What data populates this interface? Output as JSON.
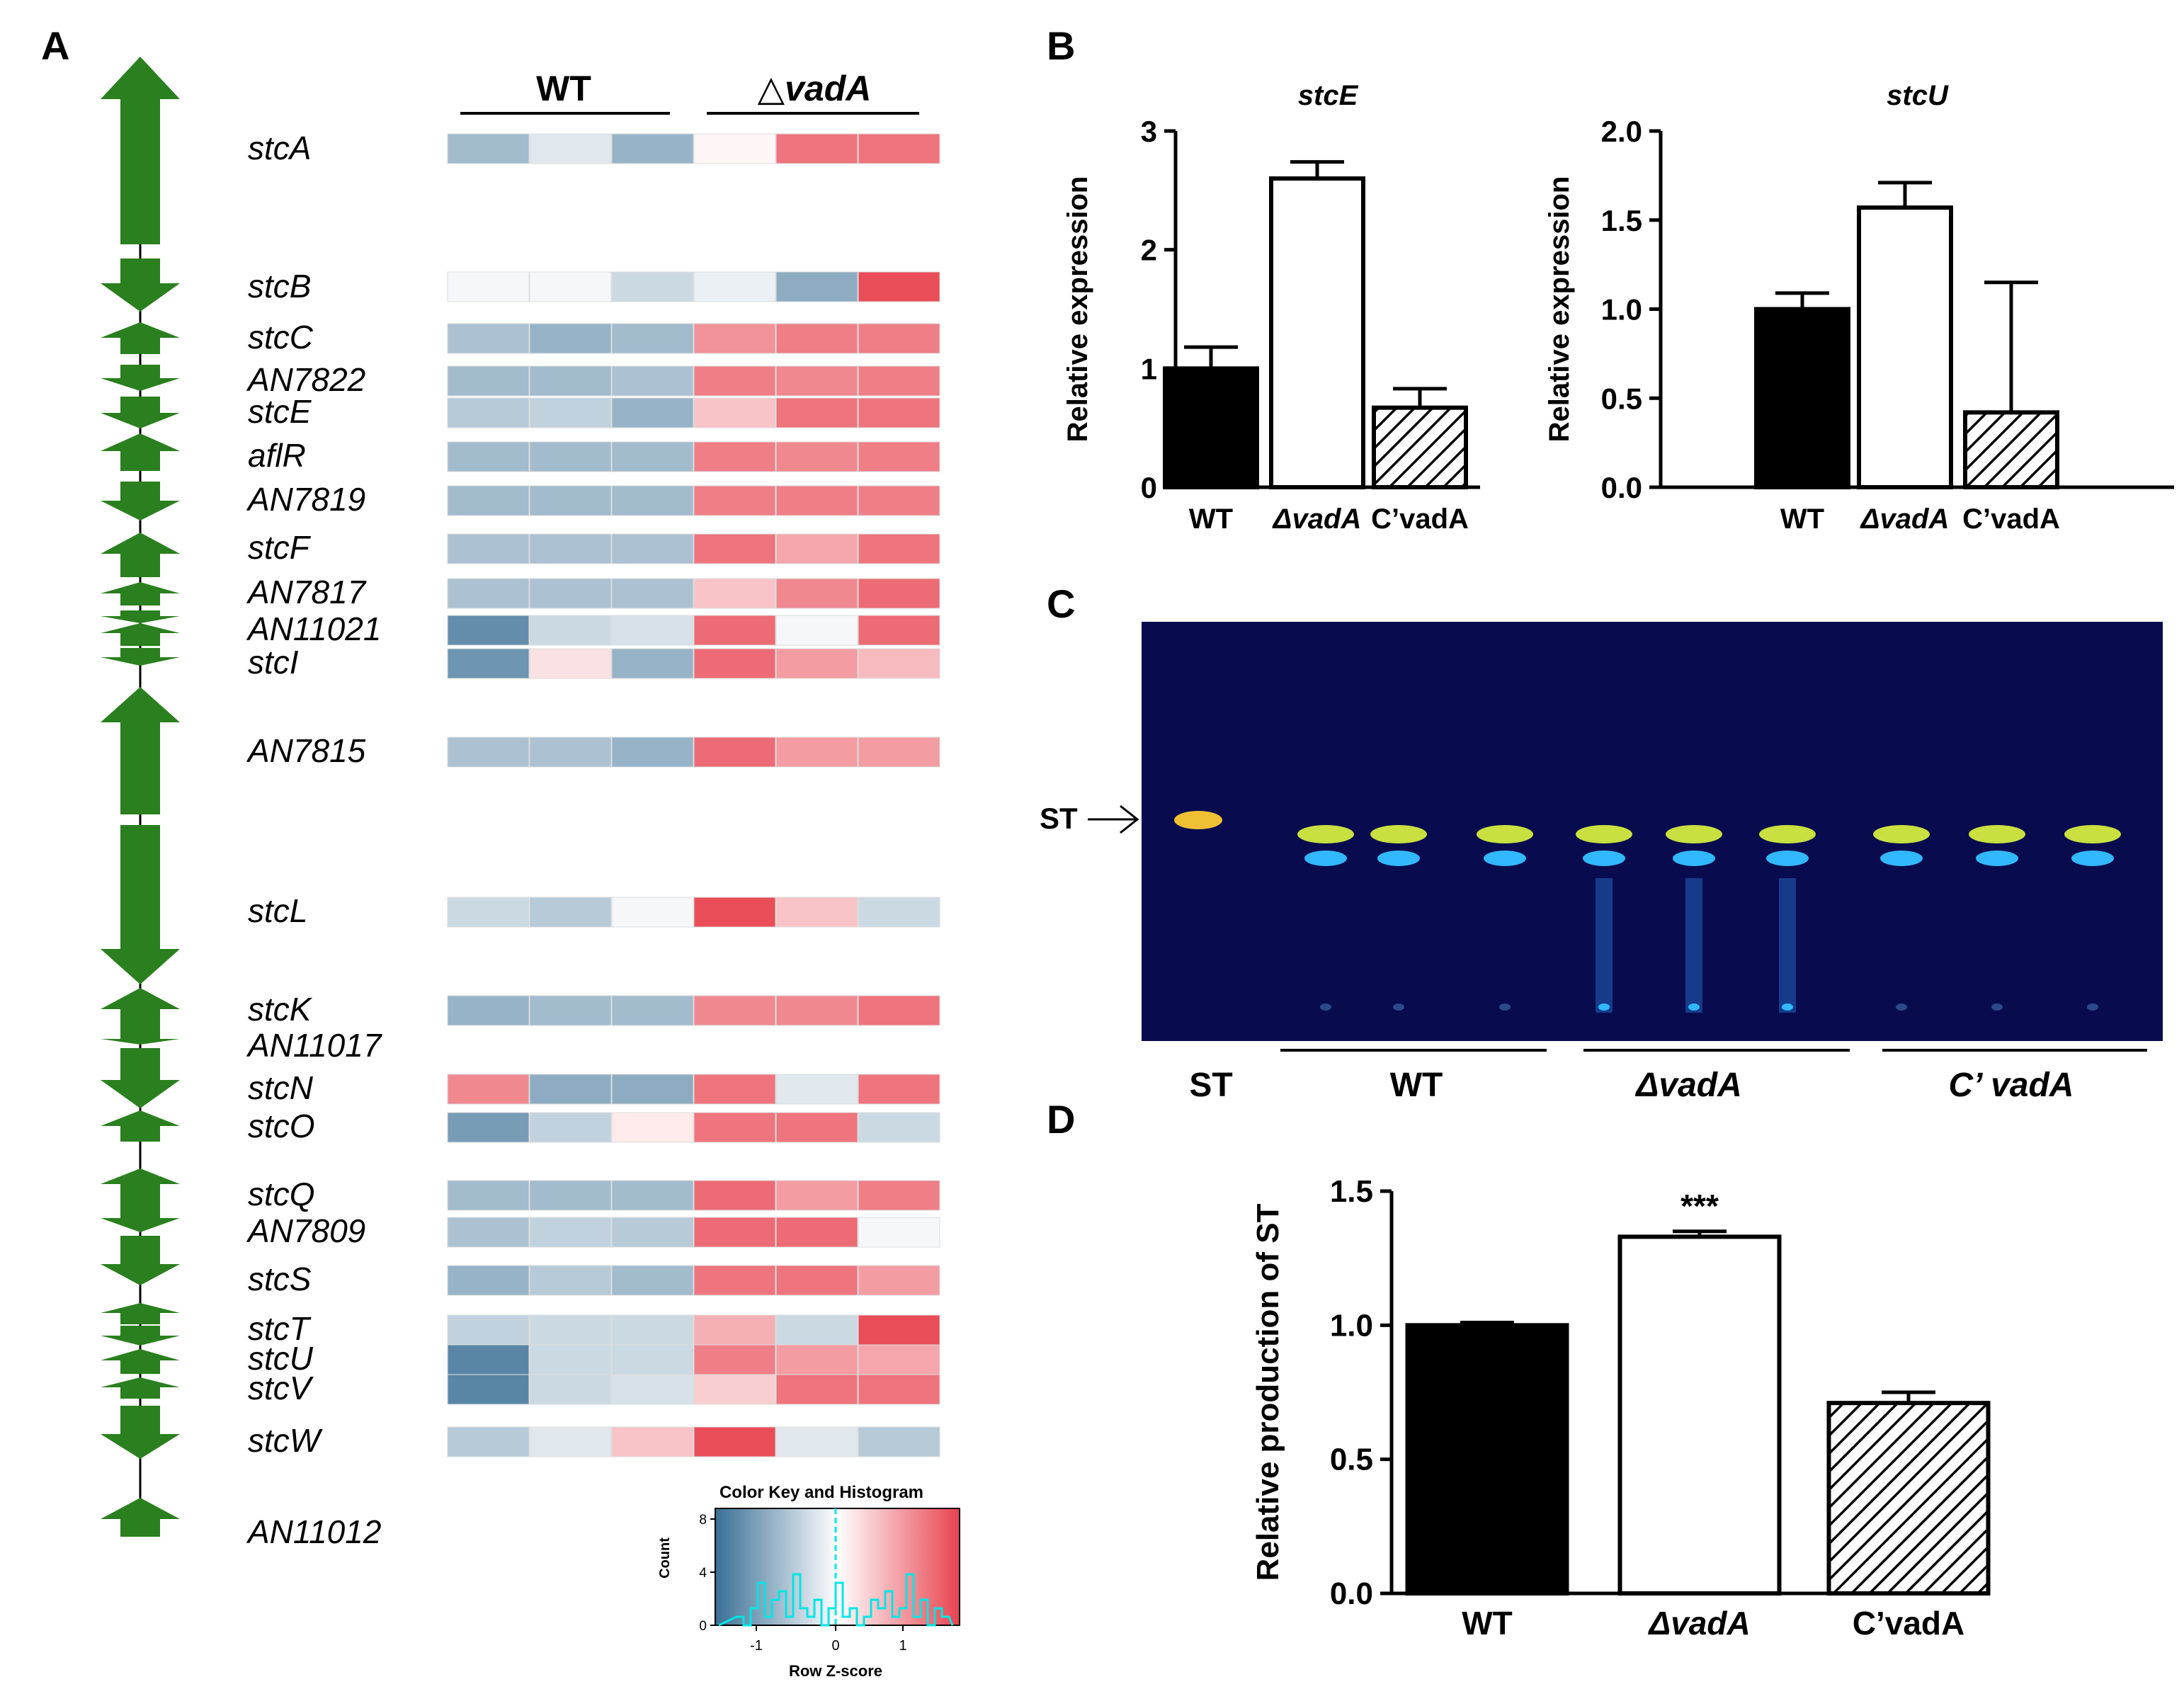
{
  "panels": {
    "a": "A",
    "b": "B",
    "c": "C",
    "d": "D"
  },
  "heatmap": {
    "group_wt": "WT",
    "group_mut_symbol": "△",
    "group_mut": "vadA",
    "genes": [
      {
        "name": "stcA",
        "z": [
          -0.9,
          -0.3,
          -1.0,
          0.1,
          1.4,
          1.4
        ]
      },
      {
        "name": "stcB",
        "z": [
          -0.1,
          -0.1,
          -0.5,
          -0.2,
          -1.1,
          1.8
        ]
      },
      {
        "name": "stcC",
        "z": [
          -0.8,
          -1.0,
          -0.9,
          1.1,
          1.3,
          1.3
        ]
      },
      {
        "name": "AN7822",
        "z": [
          -0.9,
          -0.9,
          -0.8,
          1.3,
          1.2,
          1.3
        ]
      },
      {
        "name": "stcE",
        "z": [
          -0.7,
          -0.6,
          -1.0,
          0.6,
          1.4,
          1.4
        ]
      },
      {
        "name": "aflR",
        "z": [
          -0.9,
          -0.9,
          -0.9,
          1.3,
          1.2,
          1.3
        ]
      },
      {
        "name": "AN7819",
        "z": [
          -0.9,
          -0.9,
          -0.9,
          1.3,
          1.3,
          1.3
        ]
      },
      {
        "name": "stcF",
        "z": [
          -0.8,
          -0.8,
          -0.8,
          1.4,
          0.9,
          1.4
        ]
      },
      {
        "name": "AN7817",
        "z": [
          -0.8,
          -0.8,
          -0.8,
          0.6,
          1.2,
          1.5
        ]
      },
      {
        "name": "AN11021",
        "z": [
          -1.5,
          -0.5,
          -0.4,
          1.5,
          -0.1,
          1.5
        ]
      },
      {
        "name": "stcI",
        "z": [
          -1.4,
          0.3,
          -1.0,
          1.5,
          1.0,
          0.7
        ]
      },
      {
        "name": "AN7815",
        "z": [
          -0.8,
          -0.8,
          -1.0,
          1.5,
          1.0,
          1.0
        ]
      },
      {
        "name": "stcL",
        "z": [
          -0.5,
          -0.7,
          -0.1,
          1.8,
          0.6,
          -0.5
        ]
      },
      {
        "name": "stcK",
        "z": [
          -1.0,
          -0.9,
          -0.9,
          1.2,
          1.2,
          1.4
        ]
      },
      {
        "name": "AN11017",
        "z": []
      },
      {
        "name": "stcN",
        "z": [
          1.2,
          -1.1,
          -1.1,
          1.4,
          -0.3,
          1.4
        ]
      },
      {
        "name": "stcO",
        "z": [
          -1.3,
          -0.6,
          0.2,
          1.4,
          1.4,
          -0.5
        ]
      },
      {
        "name": "stcQ",
        "z": [
          -0.9,
          -0.9,
          -0.9,
          1.5,
          1.0,
          1.3
        ]
      },
      {
        "name": "AN7809",
        "z": [
          -0.8,
          -0.6,
          -0.7,
          1.5,
          1.5,
          -0.1
        ]
      },
      {
        "name": "stcS",
        "z": [
          -1.0,
          -0.7,
          -0.9,
          1.4,
          1.4,
          1.0
        ]
      },
      {
        "name": "stcT",
        "z": [
          -0.6,
          -0.5,
          -0.5,
          0.8,
          -0.5,
          1.8
        ]
      },
      {
        "name": "stcU",
        "z": [
          -1.6,
          -0.5,
          -0.5,
          1.3,
          1.0,
          0.9
        ]
      },
      {
        "name": "stcV",
        "z": [
          -1.6,
          -0.5,
          -0.4,
          0.5,
          1.4,
          1.4
        ]
      },
      {
        "name": "stcW",
        "z": [
          -0.7,
          -0.3,
          0.6,
          1.8,
          -0.3,
          -0.7
        ]
      },
      {
        "name": "AN11012",
        "z": []
      }
    ],
    "colors": {
      "low": "#3a6f95",
      "mid": "#ffffff",
      "high": "#e8434f"
    }
  },
  "color_key": {
    "title": "Color Key and Histogram",
    "xlabel": "Row Z-score",
    "ylabel": "Count",
    "x_ticks": [
      "-1",
      "0",
      "1"
    ],
    "y_ticks": [
      "0",
      "4",
      "8"
    ],
    "hist_color": "#00e6e6"
  },
  "tlc": {
    "st_label": "ST",
    "lanes": [
      "ST",
      "WT",
      "ΔvadA",
      "C’ vadA"
    ]
  },
  "chart_data": [
    {
      "type": "bar",
      "title": "stcE",
      "ylabel": "Relative expression",
      "categories": [
        "WT",
        "ΔvadA",
        "C’vadA"
      ],
      "values": [
        1.0,
        2.6,
        0.67
      ],
      "errors": [
        0.18,
        0.14,
        0.16
      ],
      "ylim": [
        0,
        3
      ],
      "yticks": [
        "0",
        "1",
        "2",
        "3"
      ]
    },
    {
      "type": "bar",
      "title": "stcU",
      "ylabel": "Relative expression",
      "categories": [
        "WT",
        "ΔvadA",
        "C’vadA"
      ],
      "values": [
        1.0,
        1.57,
        0.42
      ],
      "errors": [
        0.09,
        0.14,
        0.73
      ],
      "ylim": [
        0,
        2.0
      ],
      "yticks": [
        "0.0",
        "0.5",
        "1.0",
        "1.5",
        "2.0"
      ]
    },
    {
      "type": "bar",
      "title": "",
      "ylabel": "Relative production of ST",
      "categories": [
        "WT",
        "ΔvadA",
        "C’vadA"
      ],
      "values": [
        1.0,
        1.33,
        0.71
      ],
      "errors": [
        0.01,
        0.02,
        0.04
      ],
      "annotation": "***",
      "ylim": [
        0,
        1.5
      ],
      "yticks": [
        "0.0",
        "0.5",
        "1.0",
        "1.5"
      ]
    }
  ]
}
